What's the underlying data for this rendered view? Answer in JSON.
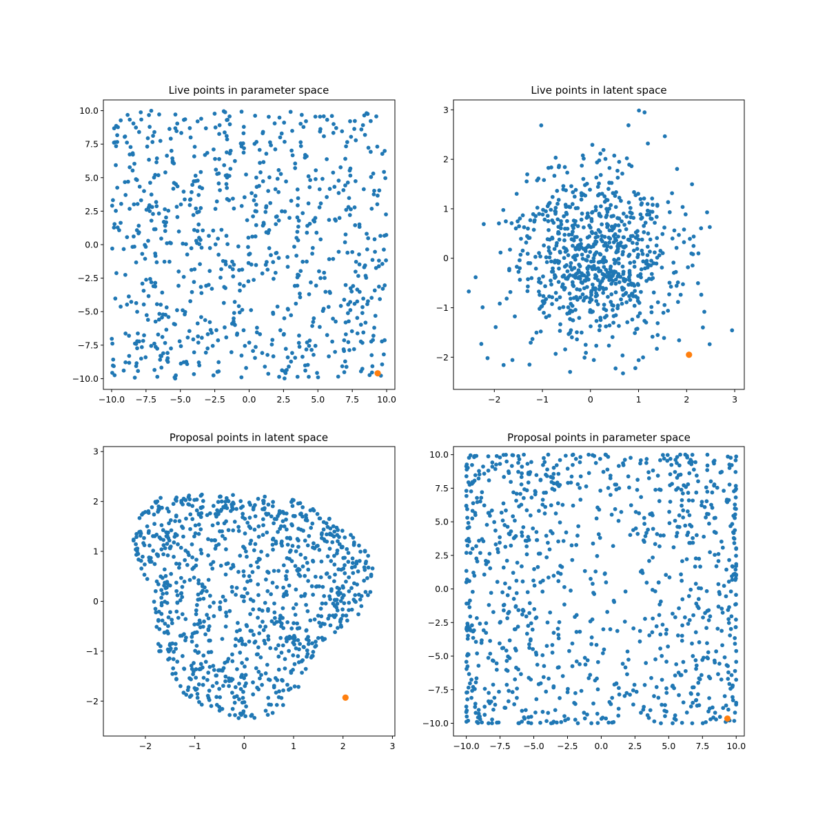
{
  "figure": {
    "background": "#ffffff"
  },
  "chart_data": [
    {
      "type": "scatter",
      "title": "Live points in parameter space",
      "xlim": [
        -10.6,
        10.6
      ],
      "ylim": [
        -10.8,
        10.8
      ],
      "xticks": [
        -10,
        -7.5,
        -5,
        -2.5,
        0,
        2.5,
        5,
        7.5,
        10
      ],
      "xtick_labels": [
        "−10.0",
        "−7.5",
        "−5.0",
        "−2.5",
        "0.0",
        "2.5",
        "5.0",
        "7.5",
        "10.0"
      ],
      "yticks": [
        -10,
        -7.5,
        -5,
        -2.5,
        0,
        2.5,
        5,
        7.5,
        10
      ],
      "ytick_labels": [
        "−10.0",
        "−7.5",
        "−5.0",
        "−2.5",
        "0.0",
        "2.5",
        "5.0",
        "7.5",
        "10.0"
      ],
      "grid": false,
      "series": [
        {
          "color": "#1f77b4",
          "distribution": "uniform-box",
          "count": 800,
          "xrange": [
            -10,
            10
          ],
          "yrange": [
            -10,
            10
          ],
          "seed": 11
        },
        {
          "color": "#ff7f0e",
          "size": "large",
          "points": [
            [
              9.35,
              -9.6
            ]
          ]
        }
      ]
    },
    {
      "type": "scatter",
      "title": "Live points in latent space",
      "xlim": [
        -2.85,
        3.2
      ],
      "ylim": [
        -2.65,
        3.2
      ],
      "xticks": [
        -2,
        -1,
        0,
        1,
        2,
        3
      ],
      "xtick_labels": [
        "−2",
        "−1",
        "0",
        "1",
        "2",
        "3"
      ],
      "yticks": [
        -2,
        -1,
        0,
        1,
        2,
        3
      ],
      "ytick_labels": [
        "−2",
        "−1",
        "0",
        "1",
        "2",
        "3"
      ],
      "grid": false,
      "series": [
        {
          "color": "#1f77b4",
          "distribution": "gaussian-blob",
          "count": 800,
          "center": [
            0.05,
            0.0
          ],
          "sigma": [
            0.85,
            0.9
          ],
          "xrange": [
            -2.65,
            3.0
          ],
          "yrange": [
            -2.45,
            3.05
          ],
          "seed": 23
        },
        {
          "color": "#ff7f0e",
          "size": "large",
          "points": [
            [
              2.05,
              -1.95
            ]
          ]
        }
      ]
    },
    {
      "type": "scatter",
      "title": "Proposal points in latent space",
      "xlim": [
        -2.85,
        3.05
      ],
      "ylim": [
        -2.7,
        3.1
      ],
      "xticks": [
        -2,
        -1,
        0,
        1,
        2,
        3
      ],
      "xtick_labels": [
        "−2",
        "−1",
        "0",
        "1",
        "2",
        "3"
      ],
      "yticks": [
        -2,
        -1,
        0,
        1,
        2,
        3
      ],
      "ytick_labels": [
        "−2",
        "−1",
        "0",
        "1",
        "2",
        "3"
      ],
      "grid": false,
      "series": [
        {
          "color": "#1f77b4",
          "distribution": "blob-region",
          "count": 1000,
          "center": [
            0.05,
            0.15
          ],
          "xrange": [
            -2.7,
            2.8
          ],
          "yrange": [
            -2.45,
            2.8
          ],
          "seed": 37
        },
        {
          "color": "#ff7f0e",
          "size": "large",
          "points": [
            [
              2.05,
              -1.93
            ]
          ]
        }
      ]
    },
    {
      "type": "scatter",
      "title": "Proposal points in parameter space",
      "xlim": [
        -10.95,
        10.6
      ],
      "ylim": [
        -10.95,
        10.6
      ],
      "xticks": [
        -10,
        -7.5,
        -5,
        -2.5,
        0,
        2.5,
        5,
        7.5,
        10
      ],
      "xtick_labels": [
        "−10.0",
        "−7.5",
        "−5.0",
        "−2.5",
        "0.0",
        "2.5",
        "5.0",
        "7.5",
        "10.0"
      ],
      "yticks": [
        -10,
        -7.5,
        -5,
        -2.5,
        0,
        2.5,
        5,
        7.5,
        10
      ],
      "ytick_labels": [
        "−10.0",
        "−7.5",
        "−5.0",
        "−2.5",
        "0.0",
        "2.5",
        "5.0",
        "7.5",
        "10.0"
      ],
      "grid": false,
      "series": [
        {
          "color": "#1f77b4",
          "distribution": "edge-concentrated-box",
          "count": 1000,
          "xrange": [
            -10,
            10
          ],
          "yrange": [
            -10,
            10
          ],
          "seed": 53
        },
        {
          "color": "#ff7f0e",
          "size": "large",
          "points": [
            [
              9.35,
              -9.65
            ]
          ]
        }
      ]
    }
  ]
}
